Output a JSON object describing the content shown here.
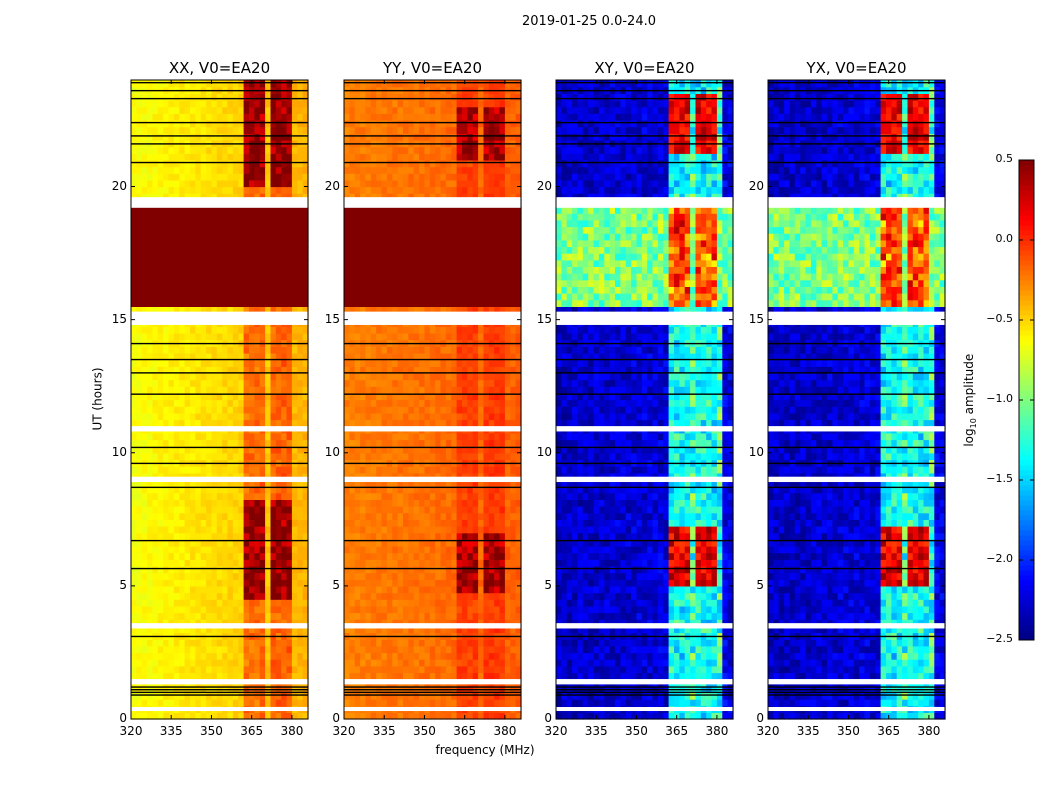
{
  "chart_data": {
    "type": "heatmap",
    "title": "2019-01-25 0.0-24.0",
    "xlabel": "frequency (MHz)",
    "ylabel": "UT (hours)",
    "xlim": [
      320,
      386
    ],
    "ylim": [
      0,
      24
    ],
    "xticks": [
      "320",
      "335",
      "350",
      "365",
      "380"
    ],
    "yticks": [
      "0",
      "5",
      "10",
      "15",
      "20"
    ],
    "colorbar": {
      "label": "log10 amplitude",
      "label_main": "log",
      "label_sub": "10",
      "label_rest": " amplitude",
      "range": [
        -2.5,
        0.5
      ],
      "ticks": [
        "0.5",
        "0.0",
        "−0.5",
        "−1.0",
        "−1.5",
        "−2.0",
        "−2.5"
      ],
      "colormap": "jet"
    },
    "flagged_gaps_hours": [
      [
        0.3,
        0.45
      ],
      [
        1.3,
        1.5
      ],
      [
        3.4,
        3.6
      ],
      [
        8.9,
        9.1
      ],
      [
        10.8,
        11.0
      ],
      [
        14.8,
        15.3
      ],
      [
        19.2,
        19.6
      ]
    ],
    "black_lines_hours": [
      0.9,
      1.0,
      1.1,
      1.2,
      3.1,
      5.65,
      6.7,
      8.7,
      9.6,
      10.2,
      12.2,
      13.0,
      13.5,
      14.1,
      20.9,
      21.6,
      21.9,
      22.4,
      23.3,
      23.6,
      23.9
    ],
    "rfi_channels_mhz": [
      [
        362,
        366
      ],
      [
        367,
        371
      ],
      [
        372,
        376
      ],
      [
        377,
        381
      ]
    ],
    "panels": [
      {
        "name": "XX, V0=EA20",
        "base_low_freq": -0.65,
        "base_high_freq": -0.4,
        "rfi_boost": 0.35,
        "rfi_peak": 0.45,
        "bands": [
          {
            "t": [
              15.5,
              19.2
            ],
            "value": 0.5
          }
        ],
        "rfi_peak_hours": [
          [
            4.5,
            8.3
          ],
          [
            20.0,
            24.0
          ]
        ]
      },
      {
        "name": "YY, V0=EA20",
        "base_low_freq": -0.25,
        "base_high_freq": -0.15,
        "rfi_boost": 0.15,
        "rfi_peak": 0.4,
        "bands": [
          {
            "t": [
              15.5,
              19.2
            ],
            "value": 0.5
          }
        ],
        "rfi_peak_hours": [
          [
            4.8,
            7.0
          ],
          [
            21.0,
            23.0
          ]
        ]
      },
      {
        "name": "XY, V0=EA20",
        "base_low_freq": -2.3,
        "base_high_freq": -2.2,
        "rfi_boost": 1.1,
        "rfi_peak": 0.2,
        "bands": [
          {
            "t": [
              15.5,
              19.2
            ],
            "value": -1.0
          }
        ],
        "rfi_peak_hours": [
          [
            5.0,
            7.3
          ],
          [
            21.3,
            23.5
          ]
        ]
      },
      {
        "name": "YX, V0=EA20",
        "base_low_freq": -2.3,
        "base_high_freq": -2.2,
        "rfi_boost": 1.1,
        "rfi_peak": 0.2,
        "bands": [
          {
            "t": [
              15.5,
              19.2
            ],
            "value": -1.0
          }
        ],
        "rfi_peak_hours": [
          [
            5.0,
            7.3
          ],
          [
            21.3,
            23.5
          ]
        ]
      }
    ]
  }
}
